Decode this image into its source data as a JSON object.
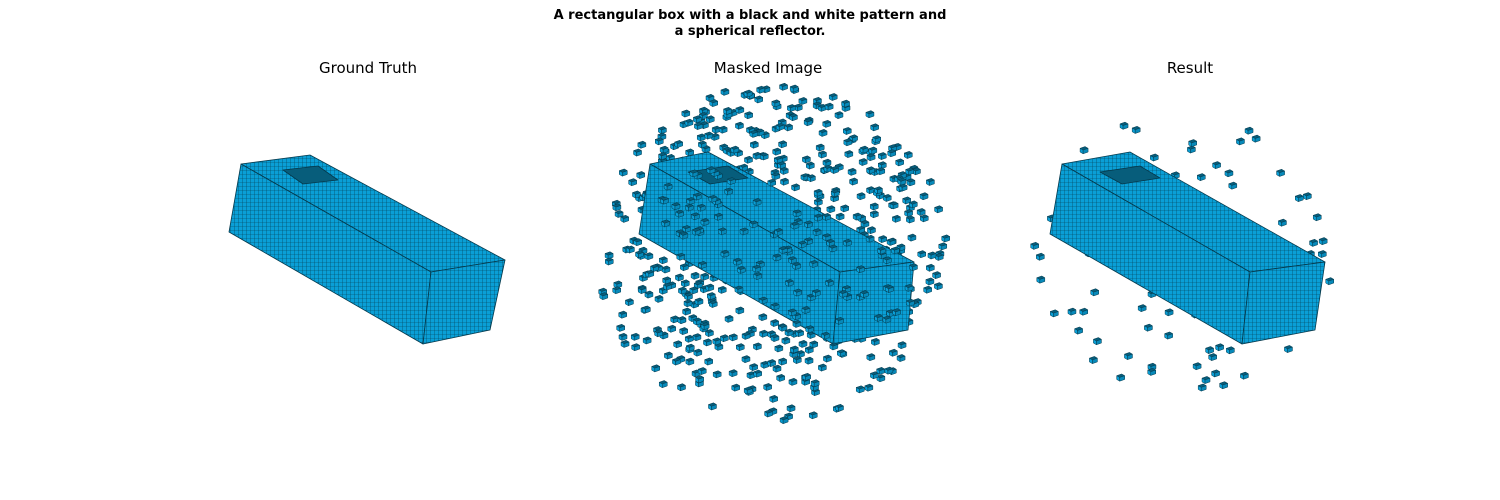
{
  "figure": {
    "suptitle_line1": "A rectangular box with a black and white pattern and",
    "suptitle_line2": "a spherical reflector.",
    "voxel_color": "#0a9fd6",
    "voxel_top_color": "#075d7b",
    "voxel_edge_color": "#04394c"
  },
  "panels": [
    {
      "title": "Ground Truth",
      "scatter_voxels": "none",
      "box_density": "solid"
    },
    {
      "title": "Masked Image",
      "scatter_voxels": "dense",
      "box_density": "sparse"
    },
    {
      "title": "Result",
      "scatter_voxels": "light",
      "box_density": "solid"
    }
  ]
}
